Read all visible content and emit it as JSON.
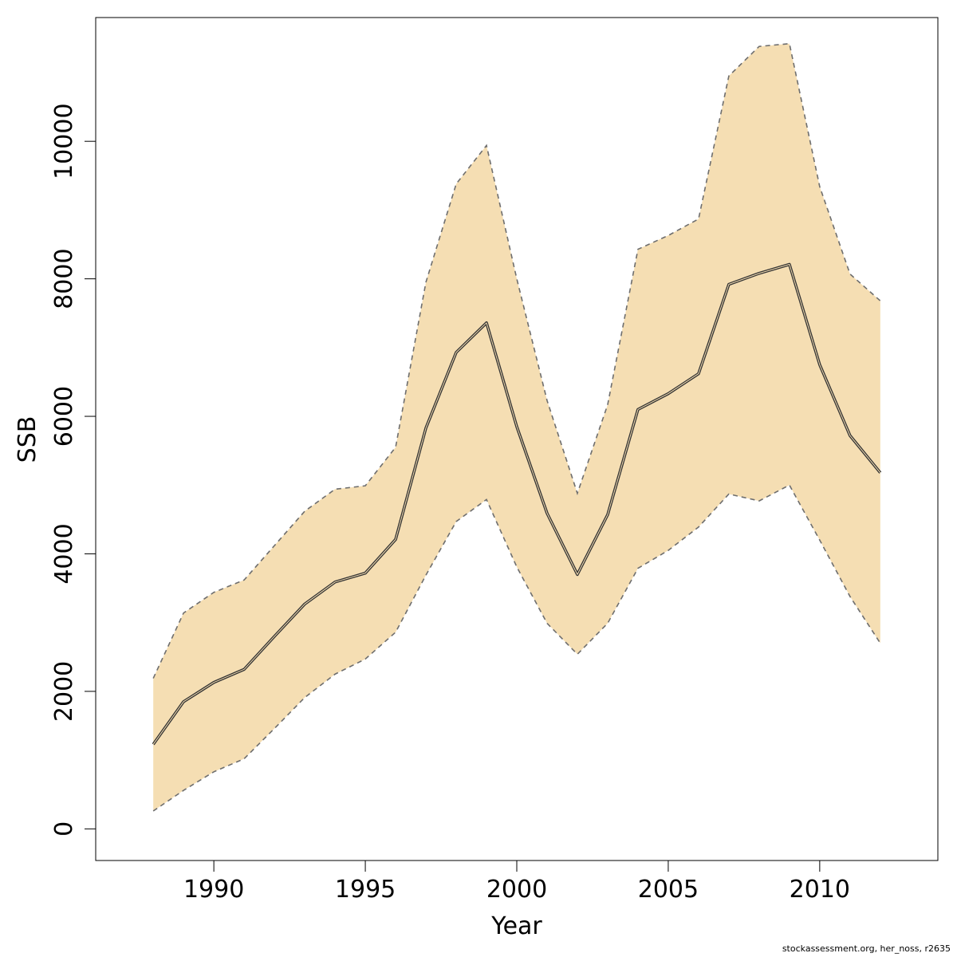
{
  "chart_data": {
    "type": "area",
    "xlabel": "Year",
    "ylabel": "SSB",
    "xlim": [
      1986.1,
      2013.9
    ],
    "ylim": [
      -460,
      11800
    ],
    "x_ticks": [
      1990,
      1995,
      2000,
      2005,
      2010
    ],
    "y_ticks": [
      0,
      2000,
      4000,
      6000,
      8000,
      10000
    ],
    "grid": false,
    "band_color": "#f5deb3",
    "line_color": "#333333",
    "bound_color": "#6e6e6e",
    "x": [
      1988,
      1989,
      1990,
      1991,
      1992,
      1993,
      1994,
      1995,
      1996,
      1997,
      1998,
      1999,
      2000,
      2001,
      2002,
      2003,
      2004,
      2005,
      2006,
      2007,
      2008,
      2009,
      2010,
      2011,
      2012
    ],
    "series": [
      {
        "values": [
          1230,
          1850,
          2130,
          2320,
          2800,
          3270,
          3590,
          3720,
          4210,
          5830,
          6930,
          7360,
          5850,
          4590,
          3700,
          4570,
          6100,
          6330,
          6620,
          7920,
          8080,
          8210,
          6750,
          5720,
          5180
        ]
      },
      {
        "values": [
          260,
          560,
          830,
          1020,
          1460,
          1910,
          2250,
          2470,
          2860,
          3690,
          4470,
          4790,
          3810,
          2990,
          2540,
          2990,
          3790,
          4050,
          4390,
          4870,
          4770,
          5000,
          4200,
          3380,
          2700
        ]
      },
      {
        "values": [
          2190,
          3140,
          3440,
          3620,
          4120,
          4620,
          4940,
          4990,
          5550,
          7950,
          9380,
          9940,
          8000,
          6230,
          4880,
          6170,
          8430,
          8630,
          8870,
          10950,
          11380,
          11420,
          9340,
          8070,
          7680
        ]
      }
    ]
  },
  "footer": {
    "note": "stockassessment.org, her_noss, r2635"
  }
}
